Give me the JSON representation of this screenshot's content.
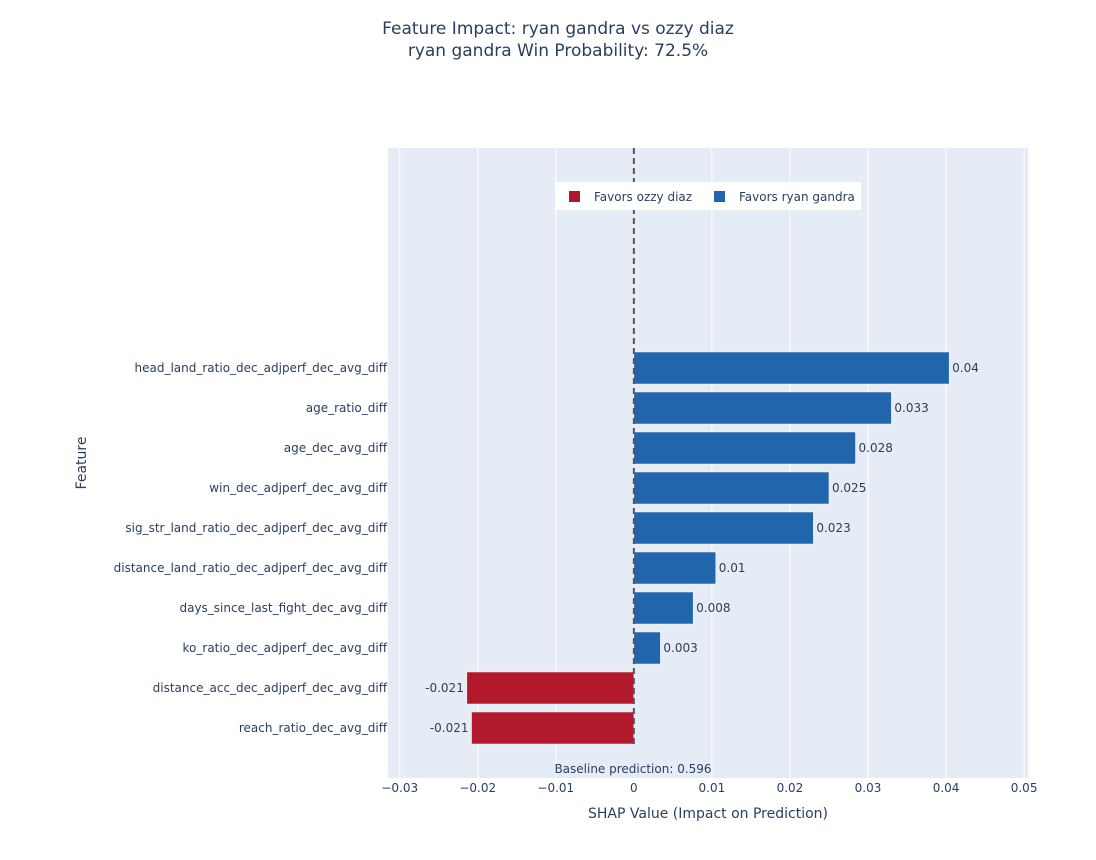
{
  "chart_data": {
    "type": "bar",
    "orientation": "horizontal",
    "title": "Feature Impact: ryan gandra vs ozzy diaz",
    "subtitle": "ryan gandra Win Probability: 72.5%",
    "xlabel": "SHAP Value (Impact on Prediction)",
    "ylabel": "Feature",
    "xlim": [
      -0.0315,
      0.0505
    ],
    "x_ticks": [
      -0.03,
      -0.02,
      -0.01,
      0,
      0.01,
      0.02,
      0.03,
      0.04,
      0.05
    ],
    "x_tick_labels": [
      "−0.03",
      "−0.02",
      "−0.01",
      "0",
      "0.01",
      "0.02",
      "0.03",
      "0.04",
      "0.05"
    ],
    "grid": true,
    "legend_position": "top-center",
    "legend": [
      {
        "name": "Favors ozzy diaz",
        "color": "#b2182b"
      },
      {
        "name": "Favors ryan gandra",
        "color": "#2166ac"
      }
    ],
    "categories": [
      "head_land_ratio_dec_adjperf_dec_avg_diff",
      "age_ratio_diff",
      "age_dec_avg_diff",
      "win_dec_adjperf_dec_avg_diff",
      "sig_str_land_ratio_dec_adjperf_dec_avg_diff",
      "distance_land_ratio_dec_adjperf_dec_avg_diff",
      "days_since_last_fight_dec_avg_diff",
      "ko_ratio_dec_adjperf_dec_avg_diff",
      "distance_acc_dec_adjperf_dec_avg_diff",
      "reach_ratio_dec_avg_diff"
    ],
    "values": [
      0.0404,
      0.033,
      0.0284,
      0.025,
      0.023,
      0.0105,
      0.0076,
      0.0034,
      -0.0214,
      -0.0208
    ],
    "data_labels": [
      "0.04",
      "0.033",
      "0.028",
      "0.025",
      "0.023",
      "0.01",
      "0.008",
      "0.003",
      "-0.021",
      "-0.021"
    ],
    "reference_line": {
      "x": 0,
      "style": "dashed"
    },
    "annotation": "Baseline prediction: 0.596",
    "colors": {
      "positive": "#2166ac",
      "negative": "#b2182b",
      "plot_bg": "#e5ecf6",
      "grid": "#ffffff",
      "text": "#2a3f5f"
    }
  }
}
